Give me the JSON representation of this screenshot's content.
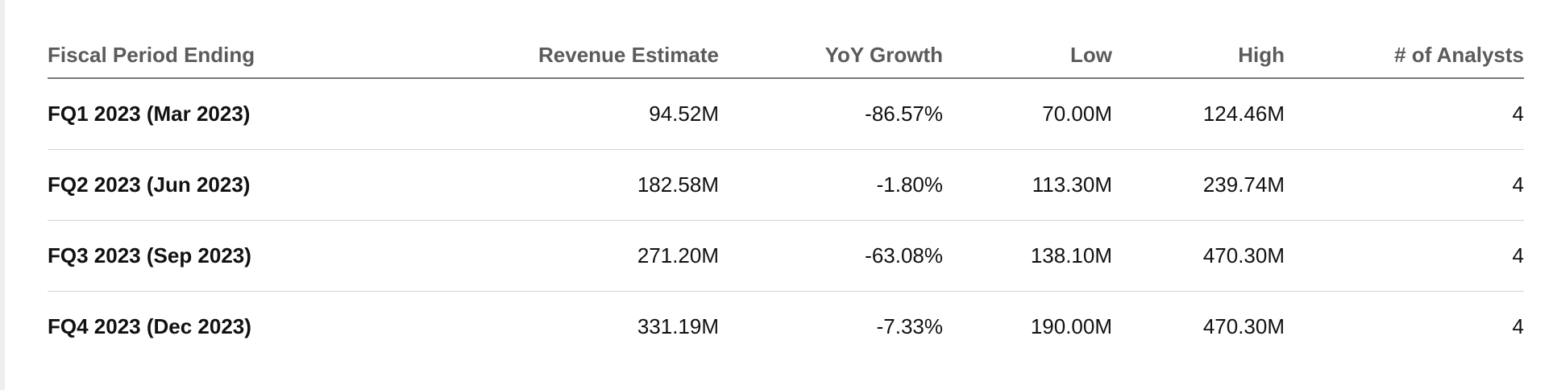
{
  "table": {
    "headers": [
      "Fiscal Period Ending",
      "Revenue Estimate",
      "YoY Growth",
      "Low",
      "High",
      "# of Analysts"
    ],
    "rows": [
      {
        "period": "FQ1 2023 (Mar 2023)",
        "revenue_estimate": "94.52M",
        "yoy_growth": "-86.57%",
        "low": "70.00M",
        "high": "124.46M",
        "analysts": "4"
      },
      {
        "period": "FQ2 2023 (Jun 2023)",
        "revenue_estimate": "182.58M",
        "yoy_growth": "-1.80%",
        "low": "113.30M",
        "high": "239.74M",
        "analysts": "4"
      },
      {
        "period": "FQ3 2023 (Sep 2023)",
        "revenue_estimate": "271.20M",
        "yoy_growth": "-63.08%",
        "low": "138.10M",
        "high": "470.30M",
        "analysts": "4"
      },
      {
        "period": "FQ4 2023 (Dec 2023)",
        "revenue_estimate": "331.19M",
        "yoy_growth": "-7.33%",
        "low": "190.00M",
        "high": "470.30M",
        "analysts": "4"
      }
    ]
  },
  "colors": {
    "header_text": "#5b5b5b",
    "body_text": "#111111",
    "header_rule": "#7a7a7a",
    "row_divider": "#d4d4d4"
  }
}
